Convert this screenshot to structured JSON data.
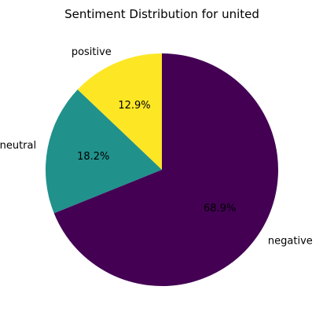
{
  "chart_data": {
    "type": "pie",
    "title": "Sentiment Distribution for united",
    "categories": [
      "positive",
      "neutral",
      "negative"
    ],
    "values": [
      12.9,
      18.2,
      68.9
    ],
    "percent_labels": [
      "12.9%",
      "18.2%",
      "68.9%"
    ],
    "colors": [
      "#fde725",
      "#21918c",
      "#440154"
    ],
    "start_angle_deg": 90,
    "direction": "counterclockwise"
  }
}
